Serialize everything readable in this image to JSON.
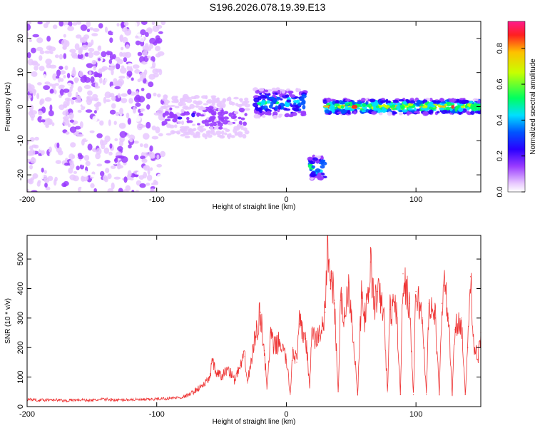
{
  "title": "S196.2026.078.19.39.E13",
  "chart_data": [
    {
      "type": "heatmap",
      "xlabel": "Height of straight line (km)",
      "ylabel": "Frequency (Hz)",
      "xlim": [
        -200,
        150
      ],
      "ylim": [
        -25,
        25
      ],
      "xticks": [
        -200,
        -100,
        0,
        100
      ],
      "yticks": [
        20,
        10,
        0,
        -10,
        -20
      ],
      "colorbar": {
        "label": "Normalized spectral amplitude",
        "range": [
          0,
          0.95
        ],
        "ticks": [
          0.0,
          0.2,
          0.4,
          0.6,
          0.8
        ]
      },
      "features": [
        {
          "x_range": [
            -200,
            -95
          ],
          "freq": "broadband",
          "amplitude": 0.12
        },
        {
          "x_range": [
            -95,
            -30
          ],
          "freq_center": -3,
          "amplitude": 0.25
        },
        {
          "x_range": [
            -25,
            15
          ],
          "freq_center": 1,
          "amplitude": 0.55
        },
        {
          "x_range": [
            18,
            30
          ],
          "freq_center": -18,
          "amplitude": 0.65
        },
        {
          "x_range": [
            30,
            150
          ],
          "freq_center": 0,
          "amplitude": 0.9
        }
      ]
    },
    {
      "type": "line",
      "xlabel": "Height of straight line (km)",
      "ylabel": "SNR (10 * v/v)",
      "xlim": [
        -200,
        150
      ],
      "ylim": [
        0,
        580
      ],
      "xticks": [
        -200,
        -100,
        0,
        100
      ],
      "yticks": [
        0,
        100,
        200,
        300,
        400,
        500
      ],
      "series": [
        {
          "name": "SNR",
          "color": "#ee3333",
          "x": [
            -200,
            -190,
            -180,
            -170,
            -160,
            -150,
            -140,
            -130,
            -120,
            -110,
            -100,
            -90,
            -80,
            -75,
            -70,
            -65,
            -60,
            -57,
            -55,
            -50,
            -45,
            -40,
            -35,
            -32,
            -30,
            -25,
            -20,
            -17,
            -15,
            -12,
            -10,
            -5,
            0,
            3,
            5,
            8,
            10,
            15,
            18,
            20,
            22,
            25,
            28,
            30,
            32,
            34,
            35,
            37,
            40,
            42,
            45,
            48,
            50,
            55,
            58,
            60,
            63,
            65,
            68,
            70,
            75,
            78,
            80,
            85,
            88,
            90,
            95,
            98,
            100,
            105,
            108,
            110,
            115,
            118,
            120,
            122,
            125,
            128,
            130,
            135,
            138,
            140,
            142,
            145,
            148,
            150
          ],
          "values": [
            25,
            22,
            24,
            20,
            23,
            21,
            25,
            22,
            24,
            23,
            26,
            28,
            32,
            40,
            55,
            70,
            90,
            150,
            120,
            100,
            130,
            90,
            140,
            170,
            80,
            210,
            320,
            190,
            60,
            250,
            200,
            220,
            160,
            40,
            200,
            150,
            280,
            230,
            70,
            270,
            220,
            240,
            280,
            320,
            580,
            400,
            450,
            360,
            50,
            360,
            300,
            420,
            330,
            40,
            380,
            300,
            350,
            490,
            330,
            390,
            330,
            50,
            330,
            330,
            40,
            450,
            350,
            40,
            390,
            300,
            40,
            350,
            300,
            40,
            350,
            410,
            300,
            40,
            260,
            300,
            40,
            200,
            440,
            200,
            160,
            250
          ]
        }
      ]
    }
  ]
}
